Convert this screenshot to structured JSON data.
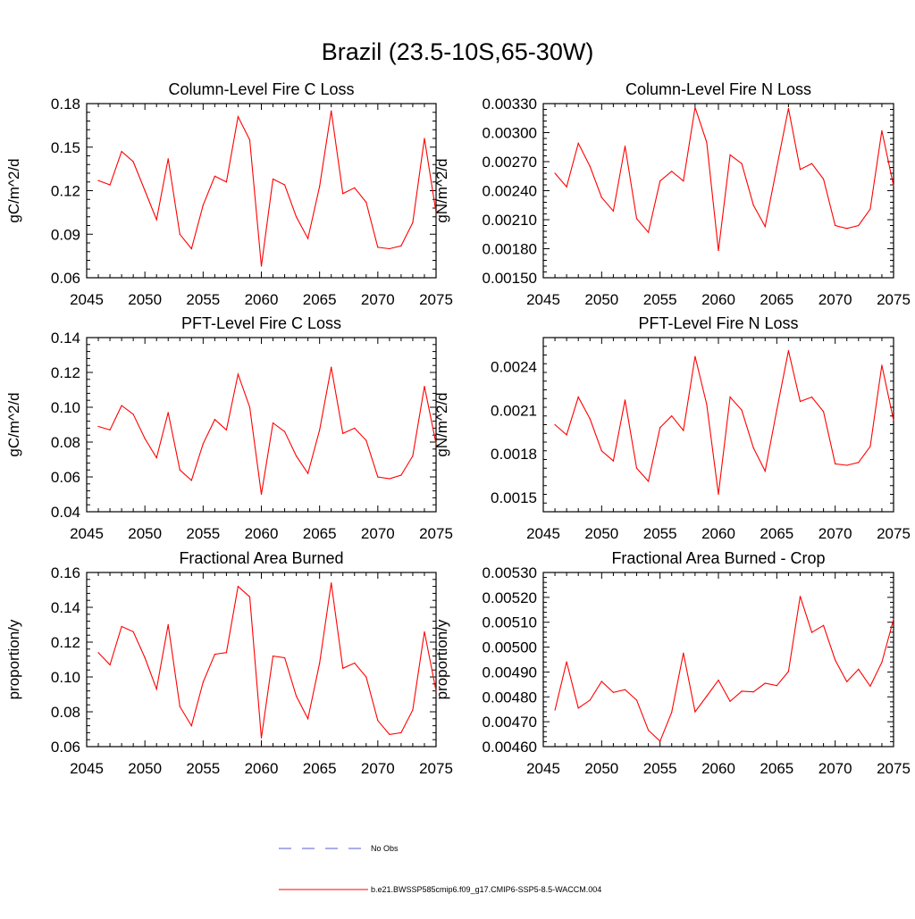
{
  "title": "Brazil (23.5-10S,65-30W)",
  "colors": {
    "series": "#ff0000",
    "obs": "#5b5bd6",
    "axis": "#000000"
  },
  "chart_data": [
    {
      "type": "line",
      "title": "Column-Level Fire C Loss",
      "ylabel": "gC/m^2/d",
      "xlim": [
        2045,
        2075
      ],
      "ylim": [
        0.06,
        0.18
      ],
      "xticks": [
        "2045",
        "2050",
        "2055",
        "2060",
        "2065",
        "2070",
        "2075"
      ],
      "yticks": [
        "0.06",
        "0.09",
        "0.12",
        "0.15",
        "0.18"
      ],
      "x": [
        2046,
        2047,
        2048,
        2049,
        2050,
        2051,
        2052,
        2053,
        2054,
        2055,
        2056,
        2057,
        2058,
        2059,
        2060,
        2061,
        2062,
        2063,
        2064,
        2065,
        2066,
        2067,
        2068,
        2069,
        2070,
        2071,
        2072,
        2073,
        2074,
        2075
      ],
      "values": [
        0.127,
        0.124,
        0.147,
        0.14,
        0.12,
        0.1,
        0.142,
        0.09,
        0.08,
        0.11,
        0.13,
        0.126,
        0.171,
        0.155,
        0.068,
        0.128,
        0.124,
        0.102,
        0.087,
        0.123,
        0.175,
        0.118,
        0.122,
        0.112,
        0.081,
        0.08,
        0.082,
        0.098,
        0.156,
        0.105
      ]
    },
    {
      "type": "line",
      "title": "Column-Level Fire N Loss",
      "ylabel": "gN/m^2/d",
      "xlim": [
        2045,
        2075
      ],
      "ylim": [
        0.0015,
        0.0033
      ],
      "xticks": [
        "2045",
        "2050",
        "2055",
        "2060",
        "2065",
        "2070",
        "2075"
      ],
      "yticks": [
        "0.00150",
        "0.00180",
        "0.00210",
        "0.00240",
        "0.00270",
        "0.00300",
        "0.00330"
      ],
      "x": [
        2046,
        2047,
        2048,
        2049,
        2050,
        2051,
        2052,
        2053,
        2054,
        2055,
        2056,
        2057,
        2058,
        2059,
        2060,
        2061,
        2062,
        2063,
        2064,
        2065,
        2066,
        2067,
        2068,
        2069,
        2070,
        2071,
        2072,
        2073,
        2074,
        2075
      ],
      "values": [
        0.00258,
        0.00244,
        0.00289,
        0.00265,
        0.00233,
        0.00219,
        0.00286,
        0.00211,
        0.00197,
        0.0025,
        0.0026,
        0.0025,
        0.00326,
        0.0029,
        0.00178,
        0.00277,
        0.00268,
        0.00225,
        0.00203,
        0.00264,
        0.00325,
        0.00262,
        0.00268,
        0.00252,
        0.00204,
        0.00201,
        0.00204,
        0.00221,
        0.00302,
        0.00245
      ]
    },
    {
      "type": "line",
      "title": "PFT-Level Fire C Loss",
      "ylabel": "gC/m^2/d",
      "xlim": [
        2045,
        2075
      ],
      "ylim": [
        0.04,
        0.14
      ],
      "xticks": [
        "2045",
        "2050",
        "2055",
        "2060",
        "2065",
        "2070",
        "2075"
      ],
      "yticks": [
        "0.04",
        "0.06",
        "0.08",
        "0.10",
        "0.12",
        "0.14"
      ],
      "x": [
        2046,
        2047,
        2048,
        2049,
        2050,
        2051,
        2052,
        2053,
        2054,
        2055,
        2056,
        2057,
        2058,
        2059,
        2060,
        2061,
        2062,
        2063,
        2064,
        2065,
        2066,
        2067,
        2068,
        2069,
        2070,
        2071,
        2072,
        2073,
        2074,
        2075
      ],
      "values": [
        0.089,
        0.087,
        0.101,
        0.096,
        0.082,
        0.071,
        0.097,
        0.064,
        0.058,
        0.079,
        0.093,
        0.087,
        0.119,
        0.1,
        0.05,
        0.091,
        0.086,
        0.072,
        0.062,
        0.087,
        0.123,
        0.085,
        0.088,
        0.081,
        0.06,
        0.059,
        0.061,
        0.072,
        0.112,
        0.079
      ]
    },
    {
      "type": "line",
      "title": "PFT-Level Fire N Loss",
      "ylabel": "gN/m^2/d",
      "xlim": [
        2045,
        2075
      ],
      "ylim": [
        0.0014,
        0.0026
      ],
      "xticks": [
        "2045",
        "2050",
        "2055",
        "2060",
        "2065",
        "2070",
        "2075"
      ],
      "yticks": [
        "0.0015",
        "0.0018",
        "0.0021",
        "0.0024"
      ],
      "x": [
        2046,
        2047,
        2048,
        2049,
        2050,
        2051,
        2052,
        2053,
        2054,
        2055,
        2056,
        2057,
        2058,
        2059,
        2060,
        2061,
        2062,
        2063,
        2064,
        2065,
        2066,
        2067,
        2068,
        2069,
        2070,
        2071,
        2072,
        2073,
        2074,
        2075
      ],
      "values": [
        0.002,
        0.00193,
        0.00219,
        0.00204,
        0.00182,
        0.00175,
        0.00217,
        0.0017,
        0.00161,
        0.00198,
        0.00206,
        0.00196,
        0.00247,
        0.00214,
        0.00152,
        0.00219,
        0.0021,
        0.00184,
        0.00168,
        0.0021,
        0.00251,
        0.00216,
        0.00219,
        0.00209,
        0.00173,
        0.00172,
        0.00174,
        0.00185,
        0.00241,
        0.00203
      ]
    },
    {
      "type": "line",
      "title": "Fractional Area Burned",
      "ylabel": "proportion/y",
      "xlim": [
        2045,
        2075
      ],
      "ylim": [
        0.06,
        0.16
      ],
      "xticks": [
        "2045",
        "2050",
        "2055",
        "2060",
        "2065",
        "2070",
        "2075"
      ],
      "yticks": [
        "0.06",
        "0.08",
        "0.10",
        "0.12",
        "0.14",
        "0.16"
      ],
      "x": [
        2046,
        2047,
        2048,
        2049,
        2050,
        2051,
        2052,
        2053,
        2054,
        2055,
        2056,
        2057,
        2058,
        2059,
        2060,
        2061,
        2062,
        2063,
        2064,
        2065,
        2066,
        2067,
        2068,
        2069,
        2070,
        2071,
        2072,
        2073,
        2074,
        2075
      ],
      "values": [
        0.114,
        0.107,
        0.129,
        0.126,
        0.111,
        0.093,
        0.13,
        0.083,
        0.072,
        0.097,
        0.113,
        0.114,
        0.152,
        0.146,
        0.065,
        0.112,
        0.111,
        0.089,
        0.076,
        0.108,
        0.154,
        0.105,
        0.108,
        0.1,
        0.075,
        0.067,
        0.068,
        0.081,
        0.126,
        0.092
      ]
    },
    {
      "type": "line",
      "title": "Fractional Area Burned - Crop",
      "ylabel": "proportion/y",
      "xlim": [
        2045,
        2075
      ],
      "ylim": [
        0.0046,
        0.0053
      ],
      "xticks": [
        "2045",
        "2050",
        "2055",
        "2060",
        "2065",
        "2070",
        "2075"
      ],
      "yticks": [
        "0.00460",
        "0.00470",
        "0.00480",
        "0.00490",
        "0.00500",
        "0.00510",
        "0.00520",
        "0.00530"
      ],
      "x": [
        2046,
        2047,
        2048,
        2049,
        2050,
        2051,
        2052,
        2053,
        2054,
        2055,
        2056,
        2057,
        2058,
        2059,
        2060,
        2061,
        2062,
        2063,
        2064,
        2065,
        2066,
        2067,
        2068,
        2069,
        2070,
        2071,
        2072,
        2073,
        2074,
        2075
      ],
      "values": [
        0.004747,
        0.004941,
        0.004755,
        0.004787,
        0.004862,
        0.004818,
        0.004829,
        0.004787,
        0.004666,
        0.004622,
        0.004738,
        0.004976,
        0.00474,
        0.004803,
        0.004867,
        0.004782,
        0.004823,
        0.00482,
        0.004855,
        0.004845,
        0.004902,
        0.005204,
        0.005059,
        0.005087,
        0.004948,
        0.004861,
        0.004911,
        0.004843,
        0.004939,
        0.005112
      ]
    }
  ],
  "legend": {
    "items": [
      {
        "label": "No Obs",
        "style": "dashed",
        "color": "#5b5bd6"
      },
      {
        "label": "b.e21.BWSSP585cmip6.f09_g17.CMIP6-SSP5-8.5-WACCM.004",
        "style": "solid",
        "color": "#ff0000"
      }
    ]
  }
}
